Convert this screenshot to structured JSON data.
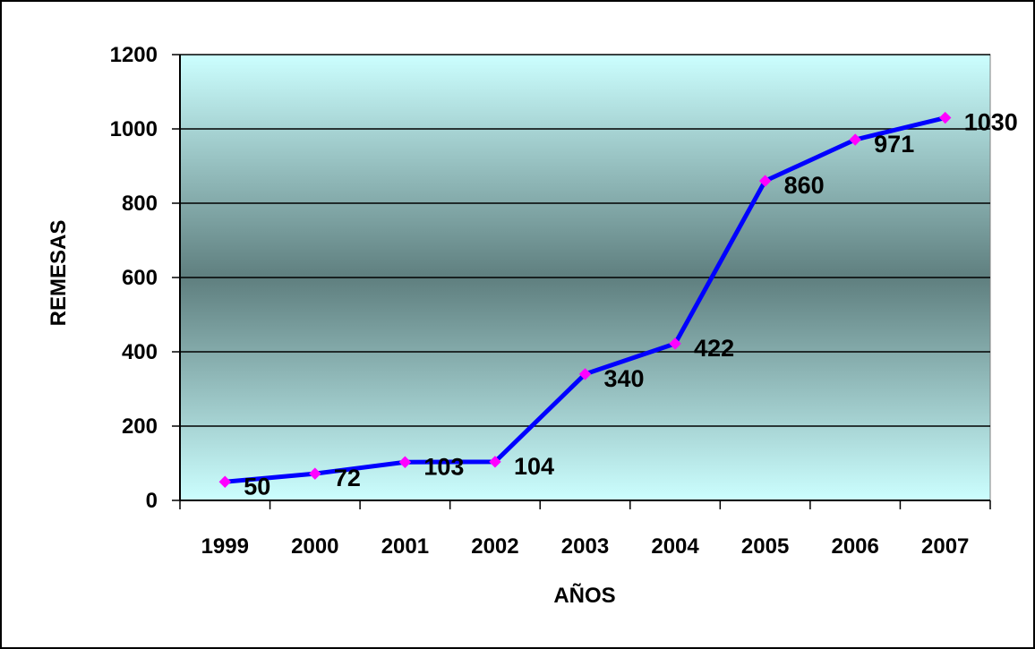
{
  "chart_data": {
    "type": "line",
    "title": "",
    "xlabel": "AÑOS",
    "ylabel": "REMESAS",
    "categories": [
      "1999",
      "2000",
      "2001",
      "2002",
      "2003",
      "2004",
      "2005",
      "2006",
      "2007"
    ],
    "series": [
      {
        "values": [
          50,
          72,
          103,
          104,
          340,
          422,
          860,
          971,
          1030
        ]
      }
    ],
    "data_labels": [
      "50",
      "72",
      "103",
      "104",
      "340",
      "422",
      "860",
      "971",
      "1030"
    ],
    "y_ticks": [
      "0",
      "200",
      "400",
      "600",
      "800",
      "1000",
      "1200"
    ],
    "ylim": [
      0,
      1200
    ],
    "grid": true,
    "legend": "none",
    "colors": {
      "line": "#0000ff",
      "marker": "#ff00ff",
      "plot_top": "#ccffff",
      "plot_middle": "#5f7f7f",
      "gridline": "#000000"
    }
  }
}
